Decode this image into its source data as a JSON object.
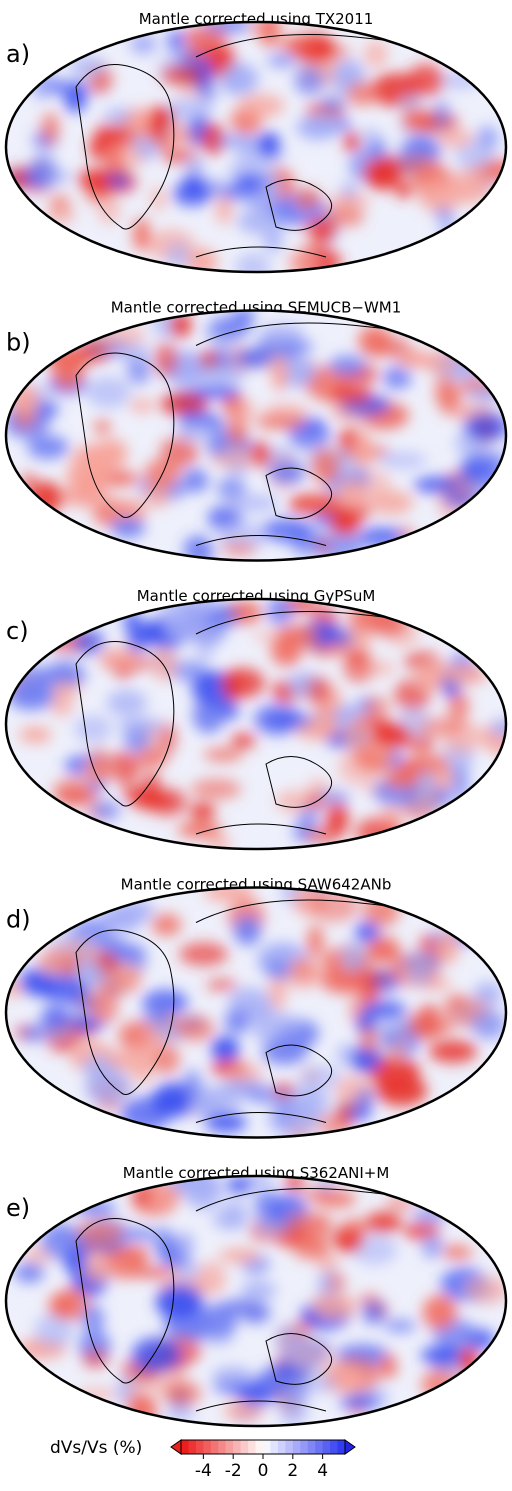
{
  "panels": [
    {
      "label": "a)",
      "title": "Mantle corrected using  TX2011"
    },
    {
      "label": "b)",
      "title": "Mantle corrected using SEMUCB−WM1"
    },
    {
      "label": "c)",
      "title": "Mantle corrected using GyPSuM"
    },
    {
      "label": "d)",
      "title": "Mantle corrected using SAW642ANb"
    },
    {
      "label": "e)",
      "title": "Mantle corrected using S362ANI+M"
    }
  ],
  "colorbar": {
    "label": "dVs/Vs (%)",
    "lim": [
      -5.5,
      5.5
    ],
    "ticks": [
      -4,
      -2,
      0,
      2,
      4
    ]
  }
}
